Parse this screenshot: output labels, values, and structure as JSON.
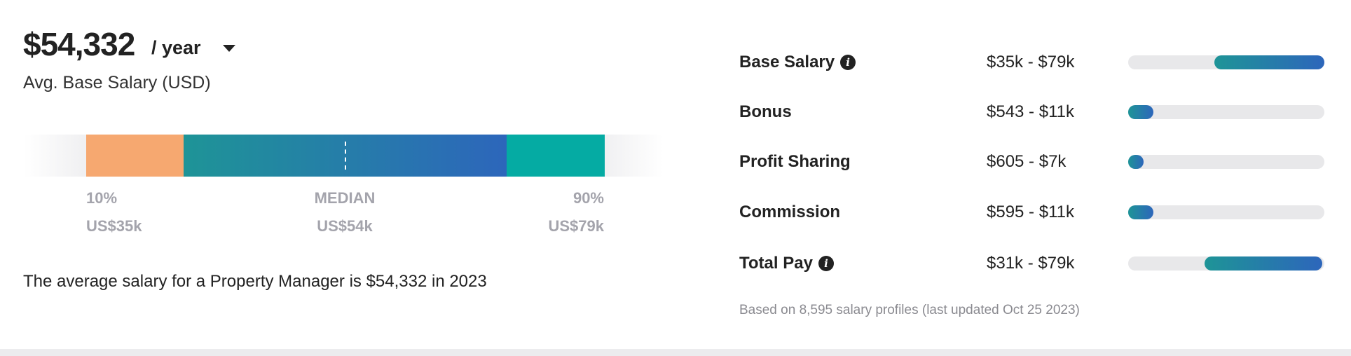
{
  "summary": {
    "amount": "$54,332",
    "period": "/ year",
    "subtitle": "Avg. Base Salary (USD)"
  },
  "distribution": {
    "colors": {
      "low": "#f6a870",
      "mid_start": "#1e9497",
      "mid_end": "#2d66bb",
      "high": "#05aba3"
    },
    "percentiles": [
      {
        "label": "10%",
        "value": "US$35k"
      },
      {
        "label": "MEDIAN",
        "value": "US$54k"
      },
      {
        "label": "90%",
        "value": "US$79k"
      }
    ]
  },
  "sentence": "The average salary for a Property Manager is $54,332 in 2023",
  "breakdown": [
    {
      "label": "Base Salary",
      "info": true,
      "range": "$35k - $79k",
      "fill_start": 0.44,
      "fill_end": 1.0
    },
    {
      "label": "Bonus",
      "info": false,
      "range": "$543 - $11k",
      "fill_start": 0.0,
      "fill_end": 0.13
    },
    {
      "label": "Profit Sharing",
      "info": false,
      "range": "$605 - $7k",
      "fill_start": 0.0,
      "fill_end": 0.08
    },
    {
      "label": "Commission",
      "info": false,
      "range": "$595 - $11k",
      "fill_start": 0.0,
      "fill_end": 0.13
    },
    {
      "label": "Total Pay",
      "info": true,
      "range": "$31k - $79k",
      "fill_start": 0.39,
      "fill_end": 0.99
    }
  ],
  "footnote": "Based on 8,595 salary profiles (last updated Oct 25 2023)"
}
